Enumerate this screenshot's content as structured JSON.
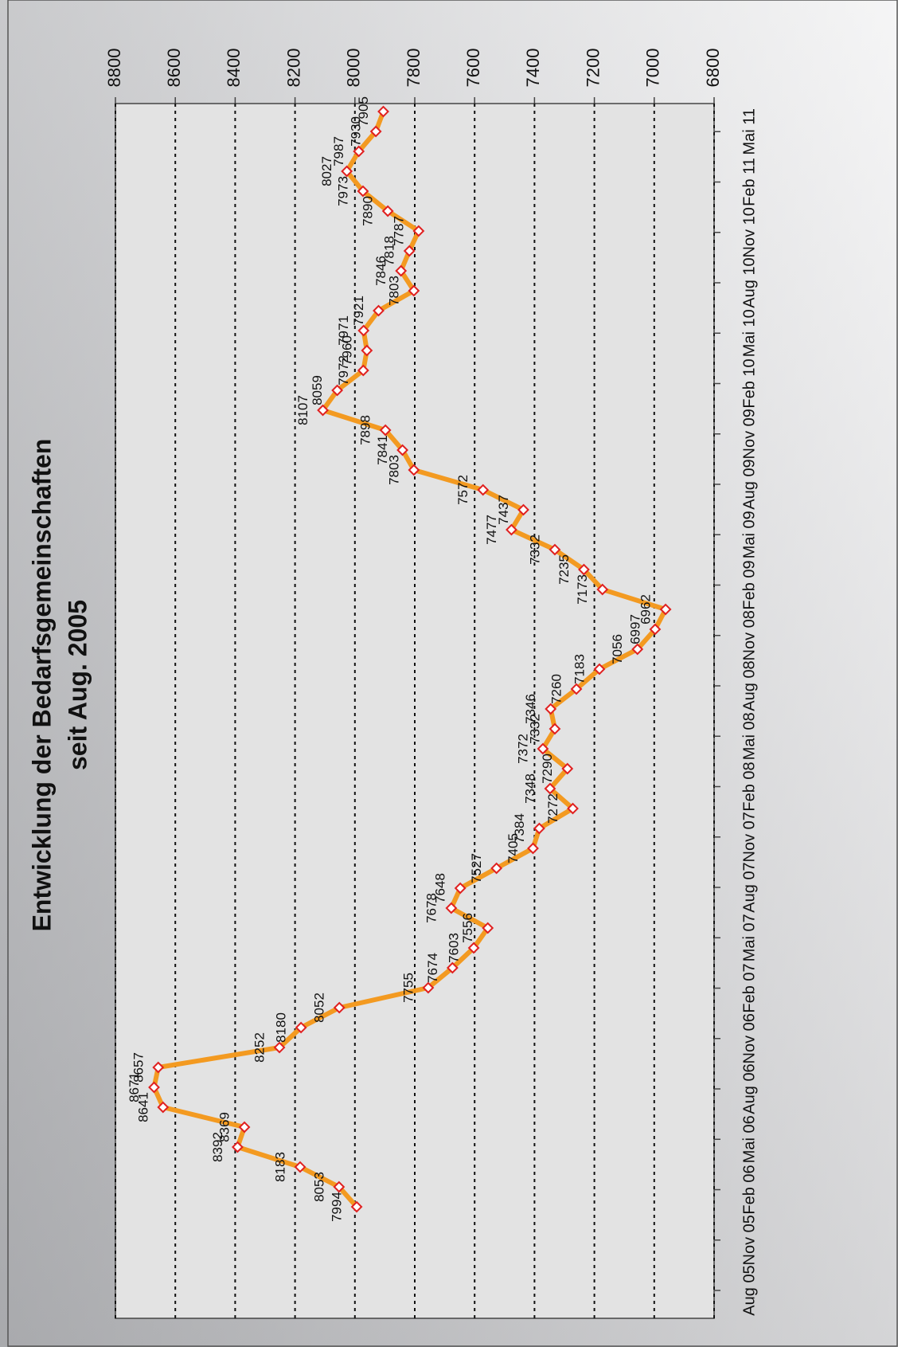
{
  "chart_data": {
    "type": "line",
    "title": "Entwicklung der Bedarfsgemeinschaften",
    "subtitle": "seit Aug. 2005",
    "x": [
      0,
      1,
      2,
      3,
      4,
      5,
      6,
      7,
      8,
      9,
      10,
      11,
      12,
      13,
      14,
      15,
      16,
      17,
      18,
      19,
      20,
      21,
      22,
      23,
      24,
      25,
      26,
      27,
      28,
      29,
      30,
      31,
      32,
      33,
      34,
      35,
      36,
      37,
      38,
      39,
      40,
      41,
      42,
      43,
      44,
      45,
      46,
      47,
      48,
      49,
      50,
      51,
      52,
      53,
      54,
      55
    ],
    "values": [
      7994,
      8053,
      8183,
      8392,
      8369,
      8641,
      8671,
      8657,
      8252,
      8180,
      8052,
      7755,
      7674,
      7603,
      7556,
      7678,
      7648,
      7527,
      7405,
      7384,
      7272,
      7348,
      7290,
      7372,
      7332,
      7346,
      7260,
      7183,
      7056,
      6997,
      6962,
      7173,
      7235,
      7332,
      7477,
      7437,
      7572,
      7803,
      7841,
      7898,
      8107,
      8059,
      7972,
      7960,
      7971,
      7921,
      7803,
      7846,
      7818,
      7787,
      7890,
      7973,
      8027,
      7987,
      7930,
      7905
    ],
    "color": "#f39a21",
    "marker_color": "#e02020",
    "xlim": [
      -5.6,
      55.4
    ],
    "xticks": [
      {
        "value": -4.2,
        "label": "Aug 05"
      },
      {
        "value": -1.67,
        "label": "Nov 05"
      },
      {
        "value": 0.86,
        "label": "Feb 06"
      },
      {
        "value": 3.39,
        "label": "Mai 06"
      },
      {
        "value": 5.92,
        "label": "Aug 06"
      },
      {
        "value": 8.45,
        "label": "Nov 06"
      },
      {
        "value": 10.98,
        "label": "Feb 07"
      },
      {
        "value": 13.51,
        "label": "Mai 07"
      },
      {
        "value": 16.04,
        "label": "Aug 07"
      },
      {
        "value": 18.57,
        "label": "Nov 07"
      },
      {
        "value": 21.1,
        "label": "Feb 08"
      },
      {
        "value": 23.63,
        "label": "Mai 08"
      },
      {
        "value": 26.16,
        "label": "Aug 08"
      },
      {
        "value": 28.69,
        "label": "Nov 08"
      },
      {
        "value": 31.22,
        "label": "Feb 09"
      },
      {
        "value": 33.75,
        "label": "Mai 09"
      },
      {
        "value": 36.28,
        "label": "Aug 09"
      },
      {
        "value": 38.81,
        "label": "Nov 09"
      },
      {
        "value": 41.34,
        "label": "Feb 10"
      },
      {
        "value": 43.87,
        "label": "Mai 10"
      },
      {
        "value": 46.4,
        "label": "Aug 10"
      },
      {
        "value": 48.93,
        "label": "Nov 10"
      },
      {
        "value": 51.46,
        "label": "Feb 11"
      },
      {
        "value": 53.99,
        "label": "Mai 11"
      }
    ],
    "ylim": [
      6800,
      8800
    ],
    "yticks": [
      6800,
      7000,
      7200,
      7400,
      7600,
      7800,
      8000,
      8200,
      8400,
      8600,
      8800
    ],
    "grid": true
  }
}
